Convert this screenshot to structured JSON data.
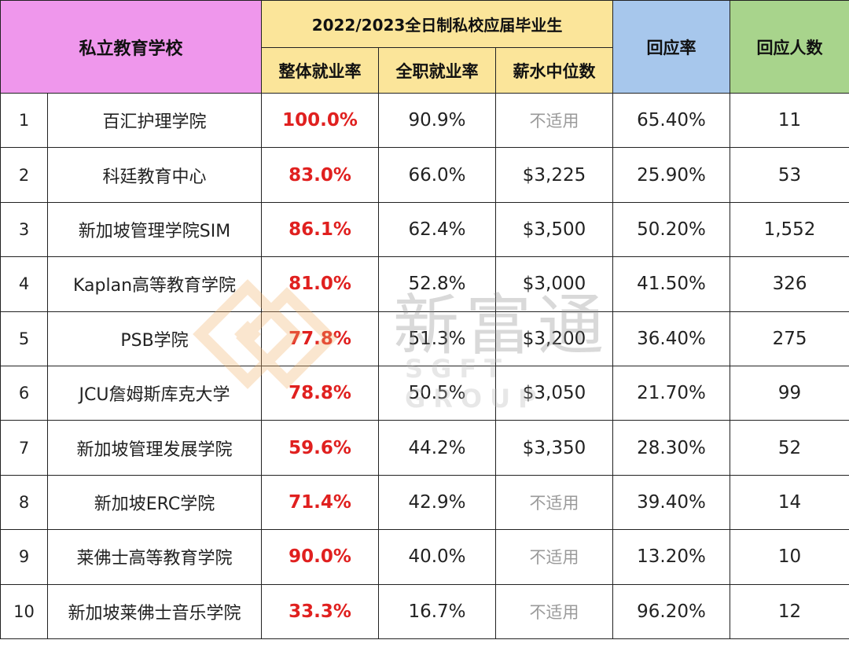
{
  "header": {
    "school_label": "私立教育学校",
    "group_label": "2022/2023全日制私校应届毕业生",
    "overall_label": "整体就业率",
    "fulltime_label": "全职就业率",
    "salary_label": "薪水中位数",
    "response_rate_label": "回应率",
    "response_count_label": "回应人数"
  },
  "rows": [
    {
      "idx": "1",
      "school": "百汇护理学院",
      "overall": "100.0%",
      "fulltime": "90.9%",
      "salary": "不适用",
      "rate": "65.40%",
      "count": "11"
    },
    {
      "idx": "2",
      "school": "科廷教育中心",
      "overall": "83.0%",
      "fulltime": "66.0%",
      "salary": "$3,225",
      "rate": "25.90%",
      "count": "53"
    },
    {
      "idx": "3",
      "school": "新加坡管理学院SIM",
      "overall": "86.1%",
      "fulltime": "62.4%",
      "salary": "$3,500",
      "rate": "50.20%",
      "count": "1,552"
    },
    {
      "idx": "4",
      "school": "Kaplan高等教育学院",
      "overall": "81.0%",
      "fulltime": "52.8%",
      "salary": "$3,000",
      "rate": "41.50%",
      "count": "326"
    },
    {
      "idx": "5",
      "school": "PSB学院",
      "overall": "77.8%",
      "fulltime": "51.3%",
      "salary": "$3,200",
      "rate": "36.40%",
      "count": "275"
    },
    {
      "idx": "6",
      "school": "JCU詹姆斯库克大学",
      "overall": "78.8%",
      "fulltime": "50.5%",
      "salary": "$3,050",
      "rate": "21.70%",
      "count": "99"
    },
    {
      "idx": "7",
      "school": "新加坡管理发展学院",
      "overall": "59.6%",
      "fulltime": "44.2%",
      "salary": "$3,350",
      "rate": "28.30%",
      "count": "52"
    },
    {
      "idx": "8",
      "school": "新加坡ERC学院",
      "overall": "71.4%",
      "fulltime": "42.9%",
      "salary": "不适用",
      "rate": "39.40%",
      "count": "14"
    },
    {
      "idx": "9",
      "school": "莱佛士高等教育学院",
      "overall": "90.0%",
      "fulltime": "40.0%",
      "salary": "不适用",
      "rate": "13.20%",
      "count": "10"
    },
    {
      "idx": "10",
      "school": "新加坡莱佛士音乐学院",
      "overall": "33.3%",
      "fulltime": "16.7%",
      "salary": "不适用",
      "rate": "96.20%",
      "count": "12"
    }
  ],
  "watermark": {
    "logo": "sgft-diamond-logo",
    "text": "新富通",
    "subtext": "SGFT GROUP"
  },
  "colors": {
    "school_header": "#ef97ec",
    "group_header": "#fbe59a",
    "response_rate_header": "#a7c7ec",
    "response_count_header": "#a8d48c",
    "overall_value": "#e0201f",
    "na_value": "#9a9a9a"
  }
}
